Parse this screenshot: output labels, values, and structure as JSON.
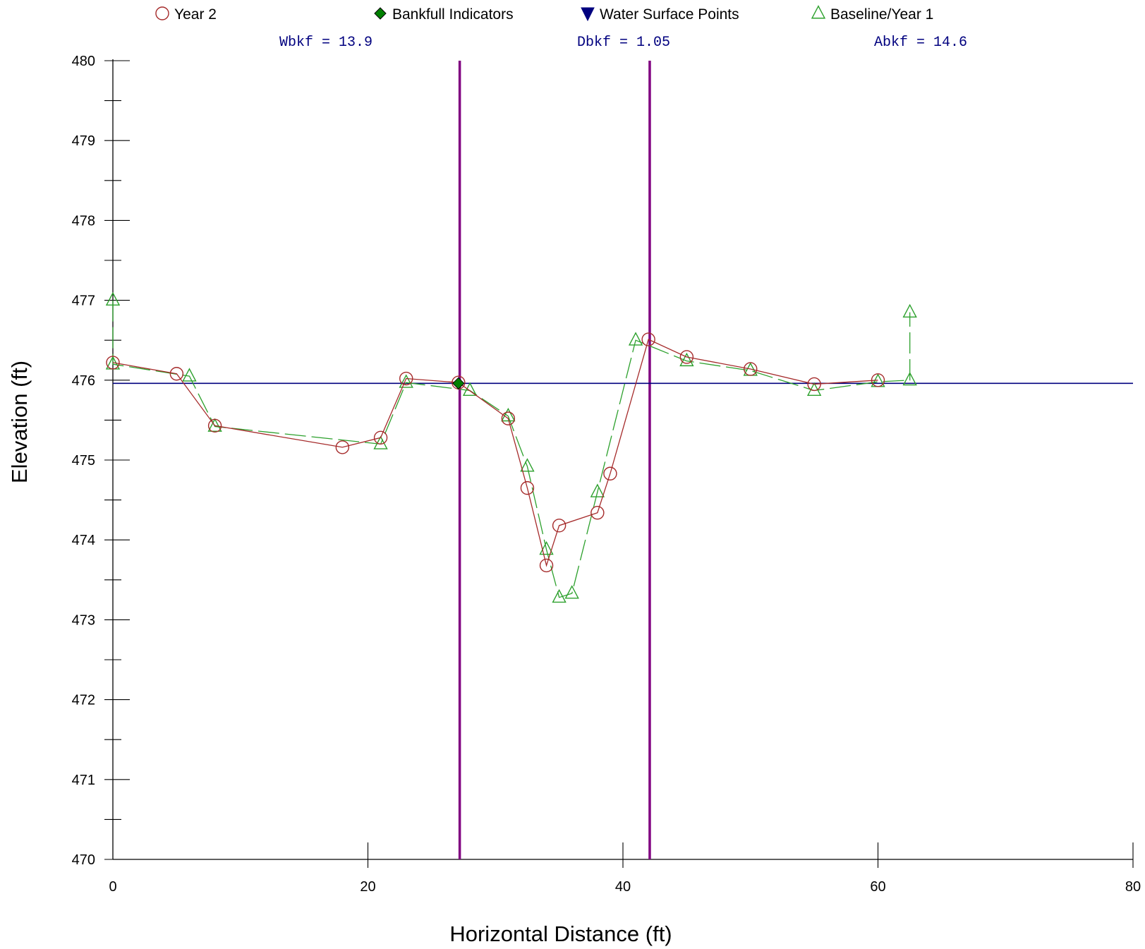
{
  "chart_data": {
    "type": "line",
    "title": "",
    "xlabel": "Horizontal Distance (ft)",
    "ylabel": "Elevation (ft)",
    "xlim": [
      0,
      80
    ],
    "ylim": [
      470,
      480
    ],
    "x_ticks": [
      0,
      20,
      40,
      60,
      80
    ],
    "y_ticks": [
      470,
      471,
      472,
      473,
      474,
      475,
      476,
      477,
      478,
      479,
      480
    ],
    "grid": false,
    "legend_position": "top",
    "legend": [
      {
        "label": "Year 2",
        "marker": "circle-open",
        "color": "#a52a2a"
      },
      {
        "label": "Bankfull Indicators",
        "marker": "diamond-filled",
        "color": "#008000"
      },
      {
        "label": "Water Surface Points",
        "marker": "triangle-down-filled",
        "color": "#00007f"
      },
      {
        "label": "Baseline/Year 1",
        "marker": "triangle-open",
        "color": "#2ca02c"
      }
    ],
    "annotations": [
      {
        "text": "Wbkf = 13.9",
        "color": "#00007f"
      },
      {
        "text": "Dbkf = 1.05",
        "color": "#00007f"
      },
      {
        "text": "Abkf = 14.6",
        "color": "#00007f"
      }
    ],
    "series": [
      {
        "name": "Year 2",
        "color": "#a52a2a",
        "marker": "circle-open",
        "line": "solid",
        "x": [
          0,
          5,
          8,
          18,
          21,
          23,
          27.1,
          31,
          32.5,
          34,
          35,
          38,
          39,
          42,
          45,
          50,
          55,
          60
        ],
        "y": [
          476.22,
          476.08,
          475.43,
          475.16,
          475.28,
          476.02,
          475.97,
          475.52,
          474.65,
          473.68,
          474.18,
          474.34,
          474.83,
          476.51,
          476.29,
          476.14,
          475.95,
          476.0
        ]
      },
      {
        "name": "Baseline/Year 1",
        "color": "#2ca02c",
        "marker": "triangle-open",
        "line": "dashed",
        "x": [
          0,
          0,
          6,
          8,
          21,
          23,
          28,
          31,
          32.5,
          34,
          35,
          36,
          38,
          41,
          45,
          50,
          55,
          60,
          62.5,
          62.5
        ],
        "y": [
          477.0,
          476.2,
          476.05,
          475.42,
          475.2,
          475.97,
          475.87,
          475.55,
          474.92,
          473.88,
          473.28,
          473.33,
          474.6,
          476.5,
          476.24,
          476.12,
          475.87,
          475.98,
          476.0,
          476.85
        ]
      },
      {
        "name": "Bankfull Indicators",
        "color": "#008000",
        "marker": "diamond-filled",
        "x": [
          27.1
        ],
        "y": [
          475.96
        ]
      },
      {
        "name": "Water Surface Points",
        "color": "#00007f",
        "marker": "triangle-down-filled",
        "x": [],
        "y": []
      }
    ],
    "reference_lines": {
      "horizontal": [
        {
          "y": 475.96,
          "color": "#00007f"
        }
      ],
      "vertical": [
        {
          "x": 27.2,
          "color": "#800080"
        },
        {
          "x": 42.1,
          "color": "#800080"
        }
      ]
    }
  }
}
